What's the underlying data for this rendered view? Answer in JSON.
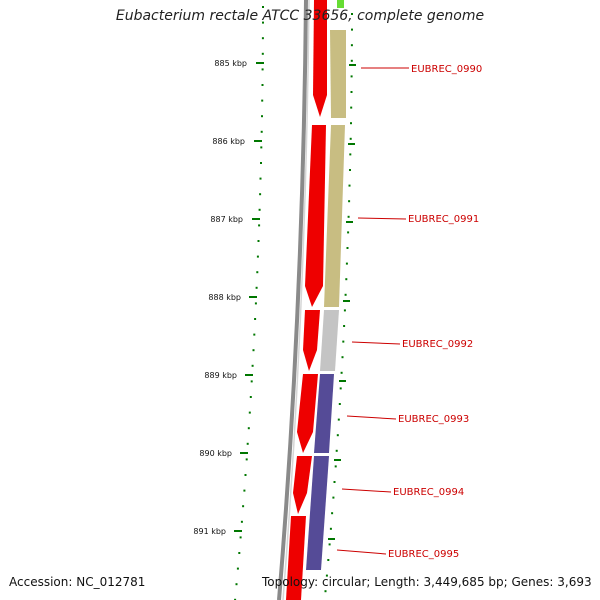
{
  "title": "Eubacterium rectale ATCC 33656, complete genome",
  "accession": "Accession: NC_012781",
  "topology": "Topology: circular; Length: 3,449,685 bp; Genes: 3,693",
  "ruler": [
    "885 kbp",
    "886 kbp",
    "887 kbp",
    "888 kbp",
    "889 kbp",
    "890 kbp",
    "891 kbp"
  ],
  "genes": [
    "EUBREC_0990",
    "EUBREC_0991",
    "EUBREC_0992",
    "EUBREC_0993",
    "EUBREC_0994",
    "EUBREC_0995"
  ],
  "colors": {
    "forward_gene": "#ee0000",
    "cog_olive": "#c8bd82",
    "cog_gray": "#c4c4c4",
    "cog_purple": "#554b97",
    "cog_green": "#66dd33",
    "tick": "#007700",
    "label": "#cc0000",
    "backbone": "#8a8a8a"
  }
}
